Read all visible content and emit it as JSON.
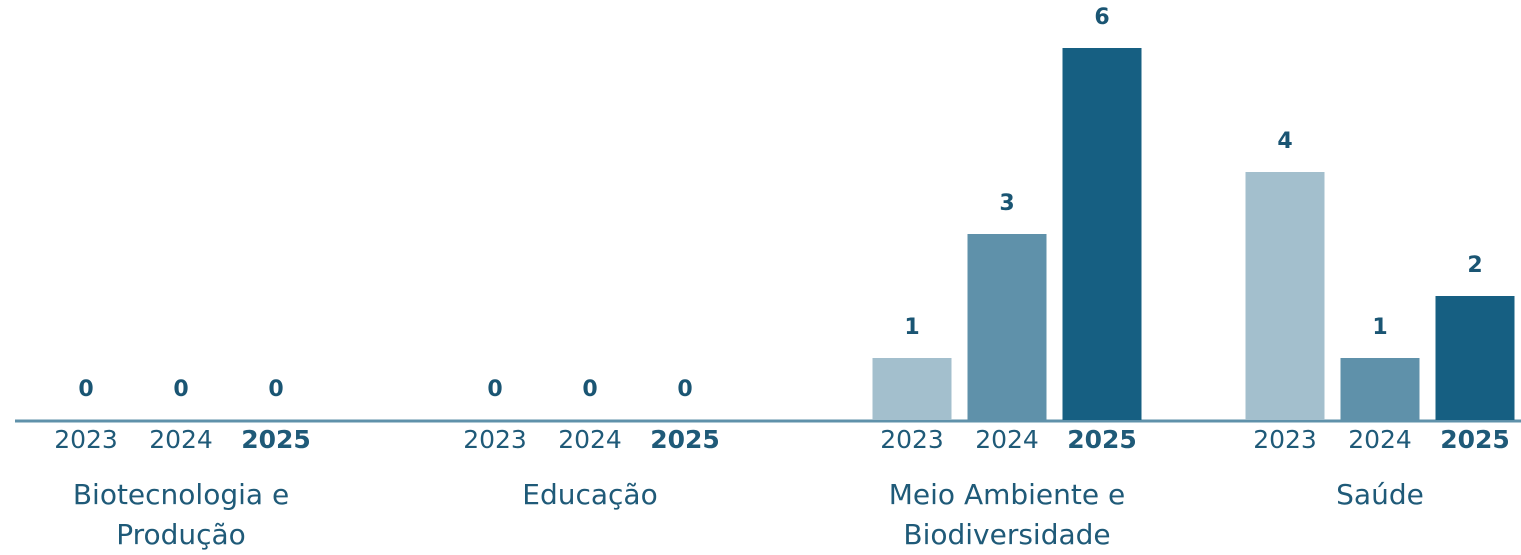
{
  "chart_data": {
    "type": "bar",
    "categories": [
      "Biotecnologia e Produção",
      "Educação",
      "Meio Ambiente e Biodiversidade",
      "Saúde"
    ],
    "series": [
      {
        "name": "2023",
        "color": "#a3bfcd",
        "values": [
          0,
          0,
          1,
          4
        ]
      },
      {
        "name": "2024",
        "color": "#5f91aa",
        "values": [
          0,
          0,
          3,
          1
        ]
      },
      {
        "name": "2025",
        "color": "#165f82",
        "values": [
          0,
          0,
          6,
          2
        ]
      }
    ],
    "ylim": [
      0,
      6
    ]
  }
}
